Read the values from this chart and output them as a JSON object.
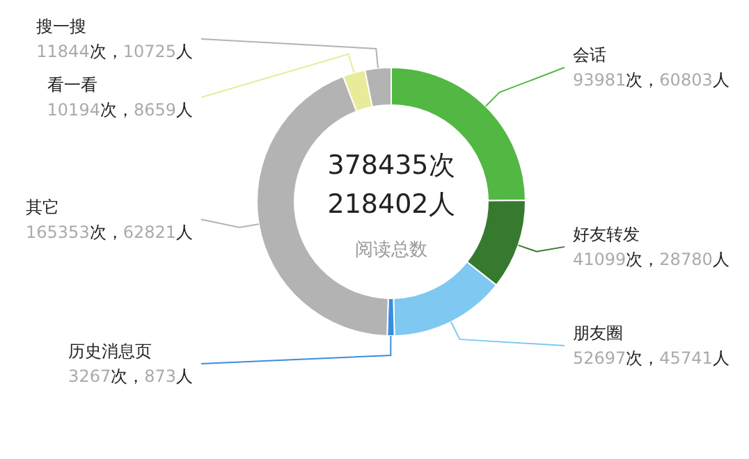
{
  "chart_data": {
    "type": "donut",
    "categories": [
      "会话",
      "好友转发",
      "朋友圈",
      "历史消息页",
      "其它",
      "看一看",
      "搜一搜"
    ],
    "values": [
      93981,
      41099,
      52697,
      3267,
      165353,
      10194,
      11844
    ],
    "colors": [
      "#52b843",
      "#367a2f",
      "#7ec8f2",
      "#3a8de0",
      "#b3b3b3",
      "#e8ec9a",
      "#b3b3b3"
    ],
    "value_labels": [
      "93981次，60803人",
      "41099次，28780人",
      "52697次，45741人",
      "3267次，873人",
      "165353次，62821人",
      "10194次，8659人",
      "11844次，10725人"
    ],
    "annotations": [
      "378435次",
      "218402人",
      "阅读总数"
    ],
    "legend": false
  }
}
